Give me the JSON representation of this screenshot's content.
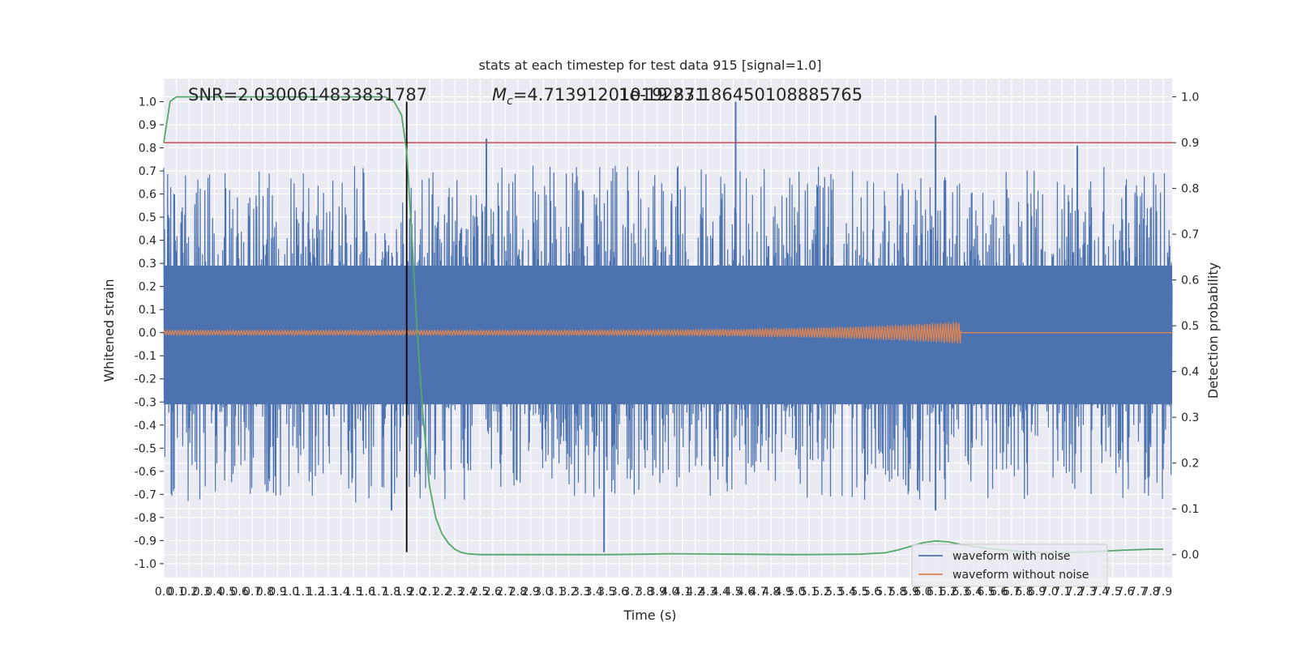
{
  "chart_data": {
    "type": "line",
    "title": "stats at each timestep for test data 915 [signal=1.0]",
    "xlabel": "Time (s)",
    "ylabel_left": "Whitened strain",
    "ylabel_right": "Detection probability",
    "xlim": [
      0.0,
      7.97
    ],
    "ylim_left": [
      -1.06,
      1.1
    ],
    "ylim_right": [
      -0.05,
      1.04
    ],
    "x_ticks": [
      0.0,
      0.1,
      0.2,
      0.3,
      0.4,
      0.5,
      0.6,
      0.7,
      0.8,
      0.9,
      1.0,
      1.1,
      1.2,
      1.3,
      1.4,
      1.5,
      1.6,
      1.7,
      1.8,
      1.9,
      2.0,
      2.1,
      2.2,
      2.3,
      2.4,
      2.5,
      2.6,
      2.7,
      2.8,
      2.9,
      3.0,
      3.1,
      3.2,
      3.3,
      3.4,
      3.5,
      3.6,
      3.7,
      3.8,
      3.9,
      4.0,
      4.1,
      4.2,
      4.3,
      4.4,
      4.5,
      4.6,
      4.7,
      4.8,
      4.9,
      5.0,
      5.1,
      5.2,
      5.3,
      5.4,
      5.5,
      5.6,
      5.7,
      5.8,
      5.9,
      6.0,
      6.1,
      6.2,
      6.3,
      6.4,
      6.5,
      6.6,
      6.7,
      6.8,
      6.9,
      7.0,
      7.1,
      7.2,
      7.3,
      7.4,
      7.5,
      7.6,
      7.7,
      7.8,
      7.9
    ],
    "x_tick_labels": [
      "0.0",
      "0.1",
      "0.2",
      "0.3",
      "0.4",
      "0.5",
      "0.6",
      "0.7",
      "0.8",
      "0.9",
      "1.0",
      "1.1",
      "1.2",
      "1.3",
      "1.4",
      "1.5",
      "1.6",
      "1.7",
      "1.8",
      "1.9",
      "2.0",
      "2.1",
      "2.2",
      "2.3",
      "2.4",
      "2.5",
      "2.6",
      "2.7",
      "2.8",
      "2.9",
      "3.0",
      "3.1",
      "3.2",
      "3.3",
      "3.4",
      "3.5",
      "3.6",
      "3.7",
      "3.8",
      "3.9",
      "4.0",
      "4.1",
      "4.2",
      "4.3",
      "4.4",
      "4.5",
      "4.6",
      "4.7",
      "4.8",
      "4.9",
      "5.0",
      "5.1",
      "5.2",
      "5.3",
      "5.4",
      "5.5",
      "5.6",
      "5.7",
      "5.8",
      "5.9",
      "6.0",
      "6.1",
      "6.2",
      "6.3",
      "6.4",
      "6.5",
      "6.6",
      "6.7",
      "6.8",
      "6.9",
      "7.0",
      "7.1",
      "7.2",
      "7.3",
      "7.4",
      "7.5",
      "7.6",
      "7.7",
      "7.8",
      "7.9"
    ],
    "y_left_ticks": [
      1.0,
      0.9,
      0.8,
      0.7,
      0.6,
      0.5,
      0.4,
      0.3,
      0.2,
      0.1,
      0.0,
      -0.1,
      -0.2,
      -0.3,
      -0.4,
      -0.5,
      -0.6,
      -0.7,
      -0.8,
      -0.9,
      -1.0
    ],
    "y_left_tick_labels": [
      "1.0",
      "0.9",
      "0.8",
      "0.7",
      "0.6",
      "0.5",
      "0.4",
      "0.3",
      "0.2",
      "0.1",
      "0.0",
      "-0.1",
      "-0.2",
      "-0.3",
      "-0.4",
      "-0.5",
      "-0.6",
      "-0.7",
      "-0.8",
      "-0.9",
      "-1.0"
    ],
    "y_right_ticks": [
      1.0,
      0.9,
      0.8,
      0.7,
      0.6,
      0.5,
      0.4,
      0.3,
      0.2,
      0.1,
      0.0
    ],
    "y_right_tick_labels": [
      "1.0",
      "0.9",
      "0.8",
      "0.7",
      "0.6",
      "0.5",
      "0.4",
      "0.3",
      "0.2",
      "0.1",
      "0.0"
    ],
    "annotations": {
      "snr": "SNR=2.0300614833831787",
      "mc": "=4.713912010192871",
      "mc_symbol": "M",
      "mc_subscript": "c",
      "overlap_text": "1e-19 23.186450108885765"
    },
    "threshold_line": {
      "axis": "right",
      "y": 0.9,
      "color": "#c44e52"
    },
    "vertical_marker": {
      "x": 1.92,
      "color": "#000000",
      "y_from": -0.95,
      "y_to": 1.0
    },
    "series": [
      {
        "name": "waveform with noise",
        "axis": "left",
        "color": "#4c72b0",
        "kind": "noise",
        "band_upper": 0.29,
        "band_lower": -0.31,
        "max": 1.0,
        "min": -0.95,
        "x_end": 7.97
      },
      {
        "name": "waveform without noise",
        "axis": "left",
        "color": "#dd8452",
        "kind": "chirp",
        "x_end": 6.3,
        "amp_start": 0.01,
        "amp_end": 0.05
      },
      {
        "name": "",
        "axis": "right",
        "color": "#55a868",
        "kind": "probability",
        "points": [
          [
            0.0,
            0.9
          ],
          [
            0.05,
            0.99
          ],
          [
            0.1,
            1.0
          ],
          [
            0.5,
            1.0
          ],
          [
            1.0,
            1.0
          ],
          [
            1.5,
            1.0
          ],
          [
            1.75,
            1.0
          ],
          [
            1.82,
            0.99
          ],
          [
            1.88,
            0.96
          ],
          [
            1.92,
            0.88
          ],
          [
            1.96,
            0.7
          ],
          [
            2.0,
            0.5
          ],
          [
            2.05,
            0.3
          ],
          [
            2.1,
            0.15
          ],
          [
            2.15,
            0.08
          ],
          [
            2.2,
            0.045
          ],
          [
            2.25,
            0.025
          ],
          [
            2.3,
            0.012
          ],
          [
            2.35,
            0.005
          ],
          [
            2.4,
            0.002
          ],
          [
            2.5,
            0.0
          ],
          [
            3.0,
            0.0
          ],
          [
            3.5,
            0.0
          ],
          [
            3.8,
            0.001
          ],
          [
            4.0,
            0.002
          ],
          [
            4.5,
            0.001
          ],
          [
            5.0,
            0.0
          ],
          [
            5.5,
            0.001
          ],
          [
            5.7,
            0.004
          ],
          [
            5.8,
            0.01
          ],
          [
            5.9,
            0.018
          ],
          [
            6.0,
            0.026
          ],
          [
            6.1,
            0.03
          ],
          [
            6.2,
            0.028
          ],
          [
            6.3,
            0.022
          ],
          [
            6.5,
            0.014
          ],
          [
            6.8,
            0.006
          ],
          [
            7.0,
            0.004
          ],
          [
            7.3,
            0.006
          ],
          [
            7.6,
            0.01
          ],
          [
            7.8,
            0.012
          ],
          [
            7.9,
            0.012
          ]
        ]
      }
    ],
    "grid": true,
    "legend": {
      "placement": "bottom-right",
      "entries": [
        "waveform with noise",
        "waveform without noise"
      ]
    }
  }
}
